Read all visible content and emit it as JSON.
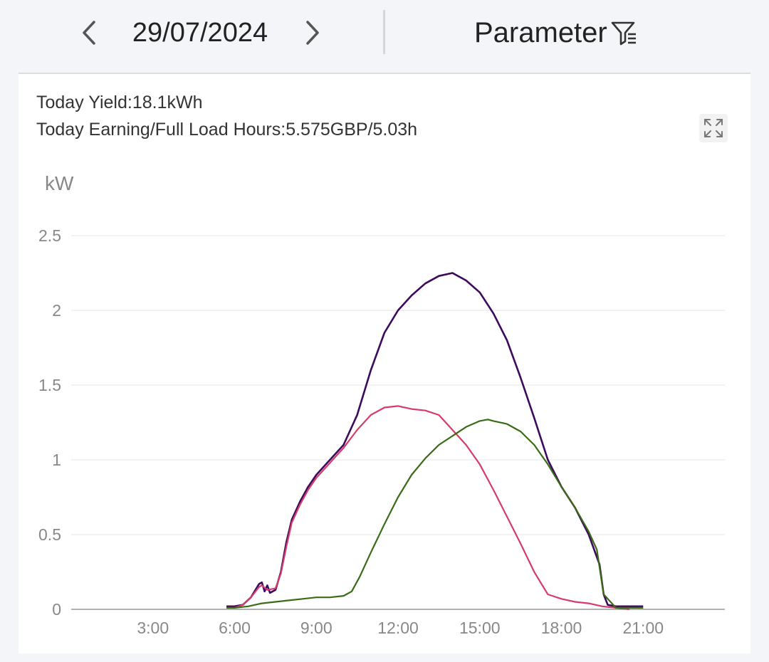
{
  "header": {
    "date": "29/07/2024",
    "parameter_label": "Parameter",
    "prev_icon": "chevron-left-icon",
    "next_icon": "chevron-right-icon",
    "filter_icon": "filter-icon"
  },
  "summary": {
    "yield_text": "Today Yield:18.1kWh",
    "earning_text": "Today Earning/Full Load Hours:5.575GBP/5.03h",
    "expand_icon": "expand-icon"
  },
  "chart_data": {
    "type": "line",
    "ylabel": "kW",
    "ylim": [
      0,
      2.5
    ],
    "yticks": [
      0,
      0.5,
      1,
      1.5,
      2,
      2.5
    ],
    "ytick_labels": [
      "0",
      "0.5",
      "1",
      "1.5",
      "2",
      "2.5"
    ],
    "xlim": [
      0,
      24
    ],
    "xticks": [
      3,
      6,
      9,
      12,
      15,
      18,
      21
    ],
    "xtick_labels": [
      "3:00",
      "6:00",
      "9:00",
      "12:00",
      "15:00",
      "18:00",
      "21:00"
    ],
    "grid": true,
    "series": [
      {
        "color": "#3d0a5e",
        "points": [
          [
            5.7,
            0.02
          ],
          [
            6.0,
            0.02
          ],
          [
            6.3,
            0.03
          ],
          [
            6.6,
            0.08
          ],
          [
            6.9,
            0.17
          ],
          [
            7.0,
            0.18
          ],
          [
            7.1,
            0.12
          ],
          [
            7.2,
            0.16
          ],
          [
            7.3,
            0.11
          ],
          [
            7.5,
            0.13
          ],
          [
            7.7,
            0.25
          ],
          [
            7.9,
            0.45
          ],
          [
            8.1,
            0.6
          ],
          [
            8.4,
            0.72
          ],
          [
            8.7,
            0.82
          ],
          [
            9.0,
            0.9
          ],
          [
            9.5,
            1.0
          ],
          [
            10.0,
            1.1
          ],
          [
            10.5,
            1.3
          ],
          [
            11.0,
            1.6
          ],
          [
            11.5,
            1.85
          ],
          [
            12.0,
            2.0
          ],
          [
            12.5,
            2.1
          ],
          [
            13.0,
            2.18
          ],
          [
            13.5,
            2.23
          ],
          [
            14.0,
            2.25
          ],
          [
            14.5,
            2.2
          ],
          [
            15.0,
            2.12
          ],
          [
            15.5,
            1.98
          ],
          [
            16.0,
            1.8
          ],
          [
            16.5,
            1.55
          ],
          [
            17.0,
            1.28
          ],
          [
            17.5,
            1.0
          ],
          [
            18.0,
            0.82
          ],
          [
            18.5,
            0.68
          ],
          [
            19.0,
            0.5
          ],
          [
            19.4,
            0.3
          ],
          [
            19.55,
            0.1
          ],
          [
            19.7,
            0.03
          ],
          [
            20.0,
            0.02
          ],
          [
            21.0,
            0.02
          ]
        ]
      },
      {
        "color": "#d63c6a",
        "points": [
          [
            5.7,
            0.01
          ],
          [
            6.0,
            0.01
          ],
          [
            6.3,
            0.03
          ],
          [
            6.6,
            0.08
          ],
          [
            6.9,
            0.15
          ],
          [
            7.0,
            0.16
          ],
          [
            7.2,
            0.13
          ],
          [
            7.5,
            0.14
          ],
          [
            7.7,
            0.24
          ],
          [
            7.9,
            0.42
          ],
          [
            8.1,
            0.58
          ],
          [
            8.4,
            0.7
          ],
          [
            8.7,
            0.8
          ],
          [
            9.0,
            0.88
          ],
          [
            9.5,
            0.98
          ],
          [
            10.0,
            1.08
          ],
          [
            10.5,
            1.2
          ],
          [
            11.0,
            1.3
          ],
          [
            11.5,
            1.35
          ],
          [
            12.0,
            1.36
          ],
          [
            12.5,
            1.34
          ],
          [
            13.0,
            1.33
          ],
          [
            13.5,
            1.3
          ],
          [
            14.0,
            1.2
          ],
          [
            14.5,
            1.1
          ],
          [
            15.0,
            0.97
          ],
          [
            15.5,
            0.8
          ],
          [
            16.0,
            0.62
          ],
          [
            16.5,
            0.44
          ],
          [
            17.0,
            0.25
          ],
          [
            17.5,
            0.1
          ],
          [
            18.0,
            0.07
          ],
          [
            18.5,
            0.05
          ],
          [
            19.0,
            0.04
          ],
          [
            19.5,
            0.02
          ],
          [
            20.0,
            0.01
          ],
          [
            20.5,
            0.0
          ]
        ]
      },
      {
        "color": "#3a6b16",
        "points": [
          [
            5.7,
            0.01
          ],
          [
            6.0,
            0.01
          ],
          [
            6.5,
            0.02
          ],
          [
            7.0,
            0.04
          ],
          [
            7.5,
            0.05
          ],
          [
            8.0,
            0.06
          ],
          [
            8.5,
            0.07
          ],
          [
            9.0,
            0.08
          ],
          [
            9.5,
            0.08
          ],
          [
            10.0,
            0.09
          ],
          [
            10.3,
            0.12
          ],
          [
            10.6,
            0.22
          ],
          [
            11.0,
            0.38
          ],
          [
            11.5,
            0.57
          ],
          [
            12.0,
            0.75
          ],
          [
            12.5,
            0.9
          ],
          [
            13.0,
            1.01
          ],
          [
            13.5,
            1.1
          ],
          [
            14.0,
            1.16
          ],
          [
            14.5,
            1.22
          ],
          [
            15.0,
            1.26
          ],
          [
            15.3,
            1.27
          ],
          [
            15.5,
            1.26
          ],
          [
            16.0,
            1.24
          ],
          [
            16.5,
            1.19
          ],
          [
            17.0,
            1.1
          ],
          [
            17.5,
            0.97
          ],
          [
            18.0,
            0.82
          ],
          [
            18.5,
            0.68
          ],
          [
            19.0,
            0.52
          ],
          [
            19.3,
            0.4
          ],
          [
            19.55,
            0.1
          ],
          [
            19.8,
            0.05
          ],
          [
            20.0,
            0.01
          ],
          [
            21.0,
            0.01
          ]
        ]
      }
    ]
  }
}
